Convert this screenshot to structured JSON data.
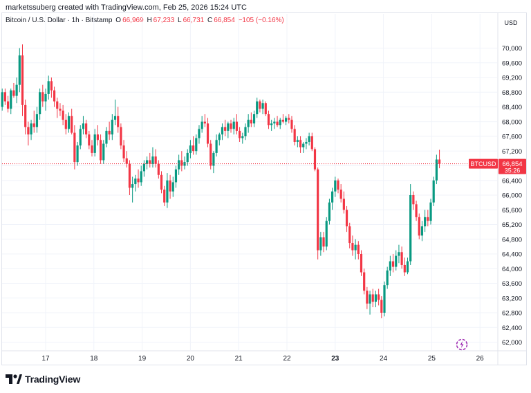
{
  "attribution": "marketssuberg created with TradingView.com, Feb 25, 2026 15:24 UTC",
  "legend": {
    "symbol": "Bitcoin / U.S. Dollar · 1h · Bitstamp",
    "o_label": "O",
    "o_value": "66,969",
    "h_label": "H",
    "h_value": "67,233",
    "l_label": "L",
    "l_value": "66,731",
    "c_label": "C",
    "c_value": "66,854",
    "change": "−105 (−0.16%)"
  },
  "currency": "USD",
  "price_tag": {
    "ticker": "BTCUSD",
    "price": "66,854",
    "countdown": "35:26"
  },
  "brand": "TradingView",
  "colors": {
    "up": "#089981",
    "down": "#f23645",
    "grid": "#f0f3fa",
    "text": "#131722"
  },
  "icons": {
    "logo": "tradingview-logo-icon",
    "replay": "bar-replay-icon"
  },
  "chart_data": {
    "type": "candlestick",
    "interval": "1h",
    "ylim": [
      61800,
      70600
    ],
    "y_ticks": [
      62000,
      62400,
      62800,
      63200,
      63600,
      64000,
      64400,
      64800,
      65200,
      65600,
      66000,
      66400,
      66800,
      67200,
      67600,
      68000,
      68400,
      68800,
      69200,
      69600,
      70000
    ],
    "y_tick_labels": [
      "62,000",
      "62,400",
      "62,800",
      "63,200",
      "63,600",
      "64,000",
      "64,400",
      "64,800",
      "65,200",
      "65,600",
      "66,000",
      "66,400",
      "66,800",
      "67,200",
      "67,600",
      "68,000",
      "68,400",
      "68,800",
      "69,200",
      "69,600",
      "70,000"
    ],
    "x_ticks": [
      17,
      18,
      19,
      20,
      21,
      22,
      23,
      24,
      25,
      26
    ],
    "x_tick_labels": [
      "17",
      "18",
      "19",
      "20",
      "21",
      "22",
      "23",
      "24",
      "25",
      "26"
    ],
    "x_tick_bold": [
      "23"
    ],
    "x_range": [
      16.0,
      26.2
    ],
    "last_price": 66854,
    "candles": [
      [
        16.1,
        68400,
        68900,
        68300,
        68800
      ],
      [
        16.16,
        68800,
        68900,
        68450,
        68550
      ],
      [
        16.22,
        68550,
        68700,
        68250,
        68350
      ],
      [
        16.28,
        68350,
        68900,
        68200,
        68850
      ],
      [
        16.34,
        68850,
        69050,
        68650,
        68700
      ],
      [
        16.4,
        68700,
        69200,
        68500,
        69000
      ],
      [
        16.46,
        69000,
        70000,
        68800,
        69800
      ],
      [
        16.52,
        69800,
        70100,
        68150,
        68450
      ],
      [
        16.58,
        68450,
        68600,
        67650,
        67850
      ],
      [
        16.64,
        67850,
        68000,
        67350,
        67650
      ],
      [
        16.7,
        67650,
        68050,
        67500,
        67950
      ],
      [
        16.76,
        67950,
        68300,
        67700,
        67850
      ],
      [
        16.82,
        67850,
        68400,
        67700,
        68200
      ],
      [
        16.88,
        68200,
        68900,
        68050,
        68800
      ],
      [
        16.94,
        68800,
        69000,
        68400,
        68550
      ],
      [
        17.0,
        68550,
        68900,
        68300,
        68750
      ],
      [
        17.06,
        68750,
        69250,
        68600,
        69100
      ],
      [
        17.12,
        69100,
        69200,
        68650,
        68850
      ],
      [
        17.18,
        68850,
        68950,
        68400,
        68550
      ],
      [
        17.24,
        68550,
        68650,
        68100,
        68350
      ],
      [
        17.3,
        68350,
        68500,
        68150,
        68300
      ],
      [
        17.36,
        68300,
        68450,
        67900,
        68050
      ],
      [
        17.42,
        68050,
        68200,
        67650,
        67800
      ],
      [
        17.48,
        67800,
        68250,
        67700,
        68150
      ],
      [
        17.54,
        68150,
        68350,
        67650,
        67700
      ],
      [
        17.6,
        67700,
        67900,
        66700,
        66900
      ],
      [
        17.66,
        66900,
        67450,
        66800,
        67350
      ],
      [
        17.72,
        67350,
        67900,
        67250,
        67800
      ],
      [
        17.78,
        67800,
        68150,
        67650,
        67950
      ],
      [
        17.84,
        67950,
        68050,
        67550,
        67650
      ],
      [
        17.9,
        67650,
        67750,
        67250,
        67350
      ],
      [
        17.96,
        67350,
        67500,
        67050,
        67150
      ],
      [
        18.02,
        67150,
        67800,
        67050,
        67650
      ],
      [
        18.08,
        67650,
        67900,
        67350,
        67500
      ],
      [
        18.14,
        67500,
        67650,
        66850,
        66950
      ],
      [
        18.2,
        66950,
        67500,
        66850,
        67400
      ],
      [
        18.26,
        67400,
        67850,
        67300,
        67750
      ],
      [
        18.32,
        67750,
        68000,
        67500,
        67650
      ],
      [
        18.38,
        67650,
        68200,
        67500,
        68050
      ],
      [
        18.44,
        68050,
        68600,
        67900,
        68150
      ],
      [
        18.5,
        68150,
        68400,
        67700,
        67850
      ],
      [
        18.56,
        67850,
        67950,
        67250,
        67350
      ],
      [
        18.62,
        67350,
        67500,
        66900,
        67000
      ],
      [
        18.68,
        67000,
        67200,
        66750,
        66850
      ],
      [
        18.74,
        66850,
        66950,
        66000,
        66200
      ],
      [
        18.8,
        66200,
        66500,
        65800,
        66300
      ],
      [
        18.86,
        66300,
        66550,
        66100,
        66450
      ],
      [
        18.92,
        66450,
        66700,
        66200,
        66350
      ],
      [
        18.98,
        66350,
        66800,
        66250,
        66650
      ],
      [
        19.04,
        66650,
        66950,
        66500,
        66850
      ],
      [
        19.1,
        66850,
        67050,
        66700,
        66950
      ],
      [
        19.16,
        66950,
        67150,
        66750,
        66850
      ],
      [
        19.22,
        66850,
        67300,
        66750,
        67050
      ],
      [
        19.28,
        67050,
        67250,
        66750,
        66850
      ],
      [
        19.34,
        66850,
        66950,
        66450,
        66550
      ],
      [
        19.4,
        66550,
        66650,
        66050,
        66150
      ],
      [
        19.46,
        66150,
        66250,
        65700,
        65800
      ],
      [
        19.52,
        65800,
        66600,
        65650,
        66400
      ],
      [
        19.58,
        66400,
        66550,
        65900,
        66100
      ],
      [
        19.64,
        66100,
        66500,
        65950,
        66350
      ],
      [
        19.7,
        66350,
        66800,
        66200,
        66700
      ],
      [
        19.76,
        66700,
        67100,
        66550,
        66950
      ],
      [
        19.82,
        66950,
        67200,
        66650,
        66800
      ],
      [
        19.88,
        66800,
        67050,
        66700,
        66900
      ],
      [
        19.94,
        66900,
        67250,
        66800,
        67150
      ],
      [
        20.0,
        67150,
        67500,
        67000,
        67350
      ],
      [
        20.06,
        67350,
        67600,
        67100,
        67200
      ],
      [
        20.12,
        67200,
        67650,
        67100,
        67550
      ],
      [
        20.18,
        67550,
        67900,
        67400,
        67800
      ],
      [
        20.24,
        67800,
        68150,
        67700,
        68000
      ],
      [
        20.3,
        68000,
        68200,
        67850,
        67950
      ],
      [
        20.36,
        67950,
        68100,
        67300,
        67400
      ],
      [
        20.42,
        67400,
        67500,
        66700,
        66800
      ],
      [
        20.48,
        66800,
        67200,
        66600,
        67150
      ],
      [
        20.54,
        67150,
        67650,
        67050,
        67500
      ],
      [
        20.6,
        67500,
        67700,
        67350,
        67650
      ],
      [
        20.66,
        67650,
        67950,
        67500,
        67850
      ],
      [
        20.72,
        67850,
        68050,
        67600,
        67750
      ],
      [
        20.78,
        67750,
        68000,
        67550,
        67950
      ],
      [
        20.84,
        67950,
        68050,
        67700,
        67800
      ],
      [
        20.9,
        67800,
        68100,
        67650,
        68000
      ],
      [
        20.96,
        68000,
        68200,
        67650,
        67750
      ],
      [
        21.02,
        67750,
        67850,
        67450,
        67550
      ],
      [
        21.08,
        67550,
        67700,
        67400,
        67600
      ],
      [
        21.14,
        67600,
        67950,
        67500,
        67850
      ],
      [
        21.2,
        67850,
        68200,
        67700,
        68050
      ],
      [
        21.26,
        68050,
        68250,
        67850,
        67950
      ],
      [
        21.32,
        67950,
        68300,
        67850,
        68200
      ],
      [
        21.38,
        68200,
        68650,
        68100,
        68550
      ],
      [
        21.44,
        68550,
        68600,
        68250,
        68350
      ],
      [
        21.5,
        68350,
        68600,
        68200,
        68500
      ],
      [
        21.56,
        68500,
        68550,
        68150,
        68200
      ],
      [
        21.62,
        68200,
        68300,
        67800,
        67900
      ],
      [
        21.68,
        67900,
        68050,
        67750,
        67950
      ],
      [
        21.74,
        67950,
        68100,
        67800,
        68000
      ],
      [
        21.8,
        68000,
        68150,
        67850,
        67900
      ],
      [
        21.86,
        67900,
        68100,
        67800,
        68050
      ],
      [
        21.92,
        68050,
        68200,
        67950,
        68000
      ],
      [
        21.98,
        68000,
        68150,
        67900,
        68100
      ],
      [
        22.04,
        68100,
        68200,
        67950,
        68050
      ],
      [
        22.1,
        68050,
        68150,
        67700,
        67800
      ],
      [
        22.16,
        67800,
        67900,
        67350,
        67450
      ],
      [
        22.22,
        67450,
        67600,
        67300,
        67500
      ],
      [
        22.28,
        67500,
        67600,
        67150,
        67300
      ],
      [
        22.34,
        67300,
        67450,
        67150,
        67400
      ],
      [
        22.4,
        67400,
        67550,
        67250,
        67450
      ],
      [
        22.46,
        67450,
        67700,
        67350,
        67600
      ],
      [
        22.52,
        67600,
        67700,
        67200,
        67250
      ],
      [
        22.58,
        67250,
        67300,
        66650,
        66700
      ],
      [
        22.64,
        66700,
        66750,
        64250,
        64500
      ],
      [
        22.7,
        64500,
        65000,
        64350,
        64850
      ],
      [
        22.76,
        64850,
        65000,
        64450,
        64600
      ],
      [
        22.82,
        64600,
        65400,
        64500,
        65300
      ],
      [
        22.88,
        65300,
        65900,
        65200,
        65800
      ],
      [
        22.94,
        65800,
        66200,
        65600,
        66100
      ],
      [
        23.0,
        66100,
        66500,
        65950,
        66400
      ],
      [
        23.06,
        66400,
        66450,
        66050,
        66150
      ],
      [
        23.12,
        66150,
        66300,
        65800,
        65900
      ],
      [
        23.18,
        65900,
        66100,
        65500,
        65600
      ],
      [
        23.24,
        65600,
        65700,
        65000,
        65150
      ],
      [
        23.3,
        65150,
        65250,
        64550,
        64700
      ],
      [
        23.36,
        64700,
        64900,
        64350,
        64500
      ],
      [
        23.42,
        64500,
        64800,
        64250,
        64650
      ],
      [
        23.48,
        64650,
        64750,
        64250,
        64400
      ],
      [
        23.54,
        64400,
        64500,
        63800,
        63900
      ],
      [
        23.6,
        63900,
        64000,
        63300,
        63400
      ],
      [
        23.66,
        63400,
        63500,
        62900,
        63050
      ],
      [
        23.72,
        63050,
        63400,
        62750,
        63300
      ],
      [
        23.78,
        63300,
        63450,
        62950,
        63100
      ],
      [
        23.84,
        63100,
        63400,
        62950,
        63300
      ],
      [
        23.9,
        63300,
        63450,
        63000,
        63150
      ],
      [
        23.96,
        63150,
        63250,
        62650,
        62800
      ],
      [
        24.02,
        62800,
        63650,
        62700,
        63550
      ],
      [
        24.08,
        63550,
        64050,
        63450,
        63950
      ],
      [
        24.14,
        63950,
        64350,
        63800,
        64200
      ],
      [
        24.2,
        64200,
        64400,
        63900,
        64050
      ],
      [
        24.26,
        64050,
        64500,
        63950,
        64350
      ],
      [
        24.32,
        64350,
        64650,
        64150,
        64450
      ],
      [
        24.38,
        64450,
        64600,
        64000,
        64100
      ],
      [
        24.44,
        64100,
        64300,
        63800,
        63900
      ],
      [
        24.5,
        63900,
        64300,
        63850,
        64200
      ],
      [
        24.56,
        64200,
        66300,
        64100,
        66000
      ],
      [
        24.62,
        66000,
        66100,
        65600,
        65750
      ],
      [
        24.68,
        65750,
        65850,
        65300,
        65400
      ],
      [
        24.74,
        65400,
        65500,
        64800,
        64900
      ],
      [
        24.8,
        64900,
        65300,
        64750,
        65150
      ],
      [
        24.86,
        65150,
        65600,
        65000,
        65400
      ],
      [
        24.92,
        65400,
        65600,
        65150,
        65300
      ],
      [
        24.98,
        65300,
        65900,
        65200,
        65800
      ],
      [
        25.04,
        65800,
        66500,
        65700,
        66400
      ],
      [
        25.1,
        66400,
        67100,
        66300,
        66969
      ],
      [
        25.16,
        66969,
        67233,
        66731,
        66854
      ]
    ]
  }
}
